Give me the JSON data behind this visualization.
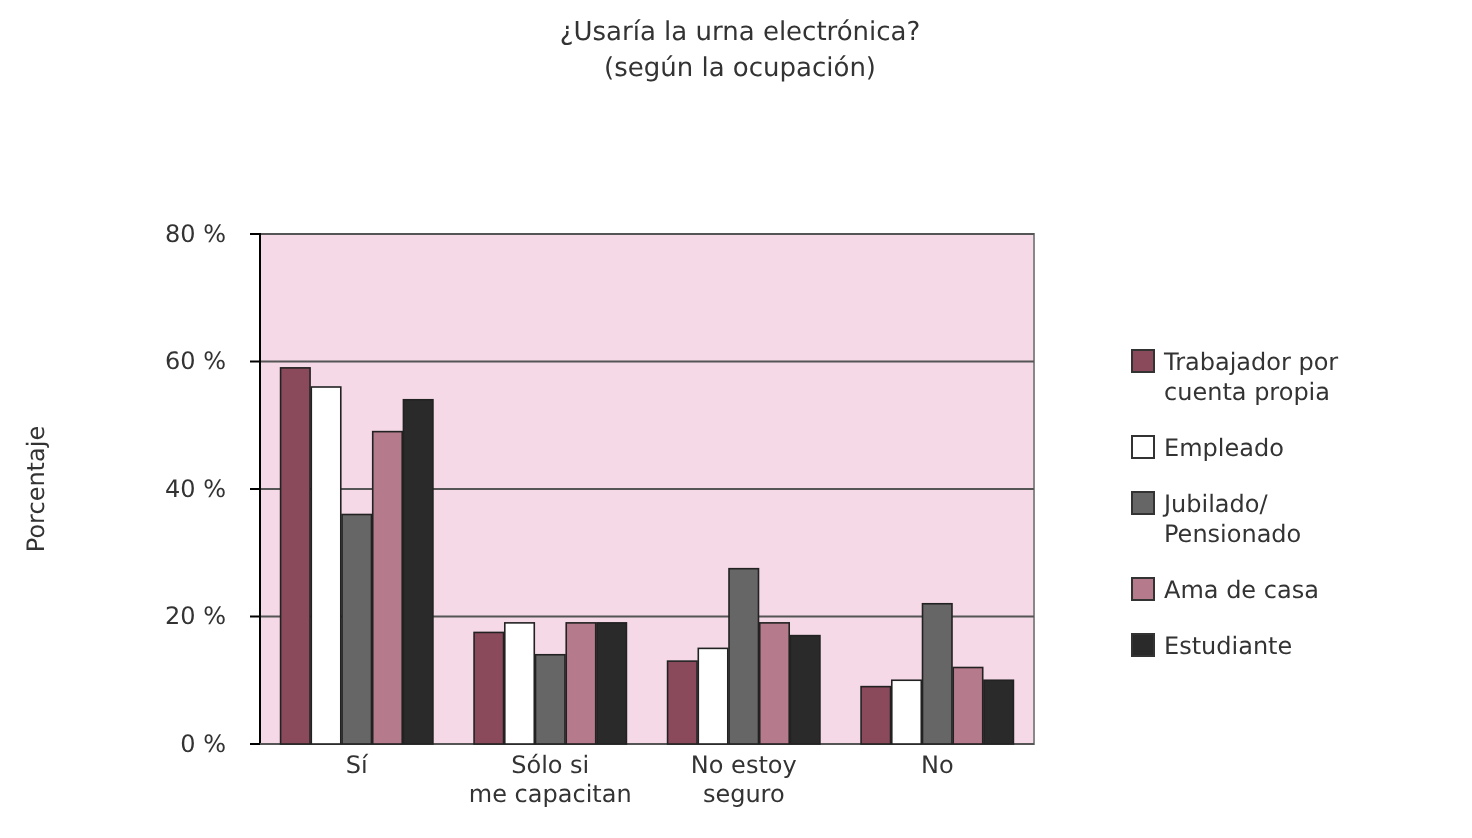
{
  "chart_data": {
    "type": "bar",
    "title": "¿Usaría la urna electrónica?",
    "subtitle": "(según la ocupación)",
    "ylabel": "Porcentaje",
    "categories": [
      "Sí",
      "Sólo si me capacitan",
      "No estoy seguro",
      "No"
    ],
    "series": [
      {
        "name": "Trabajador por cuenta propia",
        "color": "#8a4a5c",
        "values": [
          59,
          17.5,
          13,
          9
        ]
      },
      {
        "name": "Empleado",
        "color": "#ffffff",
        "values": [
          56,
          19,
          15,
          10
        ]
      },
      {
        "name": "Jubilado/ Pensionado",
        "color": "#666666",
        "values": [
          36,
          14,
          27.5,
          22
        ]
      },
      {
        "name": "Ama de casa",
        "color": "#b57a8c",
        "values": [
          49,
          19,
          19,
          12
        ]
      },
      {
        "name": "Estudiante",
        "color": "#2a2a2a",
        "values": [
          54,
          19,
          17,
          10
        ]
      }
    ],
    "ylim": [
      0,
      80
    ],
    "yticks": [
      {
        "value": 0,
        "label": "0 %"
      },
      {
        "value": 20,
        "label": "20 %"
      },
      {
        "value": 40,
        "label": "40 %"
      },
      {
        "value": 60,
        "label": "60 %"
      },
      {
        "value": 80,
        "label": "80 %"
      }
    ],
    "grid": "y",
    "legend": "right"
  }
}
